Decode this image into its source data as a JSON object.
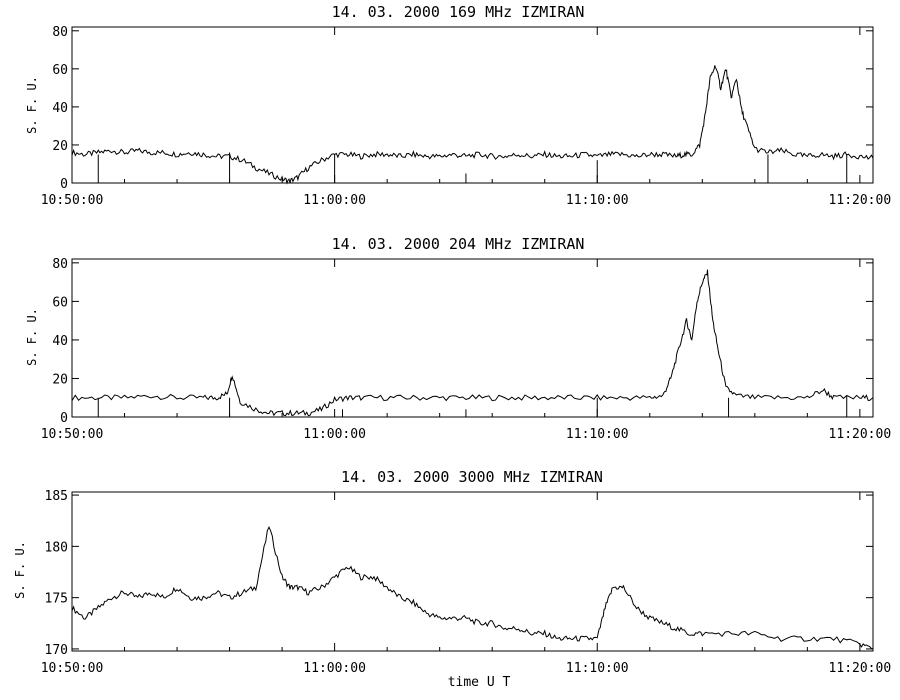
{
  "figure": {
    "footer_label": "time  U T",
    "colors": {
      "background": "#ffffff",
      "ink": "#000000"
    }
  },
  "chart_data": [
    {
      "type": "line",
      "title": "14.  03.  2000   169 MHz   IZMIRAN",
      "ylabel": "S. F. U.",
      "xlabel": "",
      "xlim": [
        0,
        30.5
      ],
      "ylim": [
        0,
        82
      ],
      "yticks": [
        0,
        20,
        40,
        60,
        80
      ],
      "xticks": [
        0,
        10,
        20,
        30
      ],
      "xtick_labels": [
        "10:50:00",
        "11:00:00",
        "11:10:00",
        "11:20:00"
      ],
      "x": [
        0,
        0.5,
        1,
        1.5,
        2,
        2.5,
        3,
        3.5,
        4,
        4.5,
        5,
        5.5,
        6,
        6.5,
        7,
        7.5,
        8,
        8.3,
        8.6,
        9,
        9.5,
        10,
        10.5,
        11,
        11.5,
        12,
        12.5,
        13,
        13.5,
        14,
        14.5,
        15,
        15.5,
        16,
        16.5,
        17,
        17.5,
        18,
        18.5,
        19,
        19.5,
        20,
        20.5,
        21,
        21.5,
        22,
        22.5,
        23,
        23.3,
        23.6,
        23.9,
        24.1,
        24.3,
        24.5,
        24.7,
        24.9,
        25.1,
        25.3,
        25.5,
        25.7,
        26,
        26.5,
        27,
        27.5,
        28,
        28.5,
        29,
        29.5,
        30,
        30.5
      ],
      "series": [
        {
          "values": [
            16,
            15,
            16,
            17,
            16,
            17,
            16,
            16,
            15,
            16,
            15,
            14,
            14,
            12,
            8,
            5,
            2,
            1,
            3,
            8,
            12,
            15,
            15,
            14,
            15,
            15,
            14,
            15,
            14,
            14,
            15,
            14,
            15,
            14,
            14,
            15,
            14,
            15,
            14,
            14,
            15,
            14,
            15,
            15,
            14,
            15,
            15,
            14,
            15,
            15,
            20,
            35,
            55,
            62,
            50,
            60,
            45,
            55,
            38,
            30,
            18,
            16,
            17,
            15,
            14,
            15,
            14,
            15,
            14,
            13
          ]
        }
      ],
      "dropouts_x": [
        1,
        6,
        10,
        15,
        20,
        26.5,
        29.5
      ]
    },
    {
      "type": "line",
      "title": "14.  03.  2000   204 MHz   IZMIRAN",
      "ylabel": "S. F. U.",
      "xlabel": "",
      "xlim": [
        0,
        30.5
      ],
      "ylim": [
        0,
        82
      ],
      "yticks": [
        0,
        20,
        40,
        60,
        80
      ],
      "xticks": [
        0,
        10,
        20,
        30
      ],
      "xtick_labels": [
        "10:50:00",
        "11:00:00",
        "11:10:00",
        "11:20:00"
      ],
      "x": [
        0,
        1,
        2,
        3,
        4,
        5,
        5.5,
        5.9,
        6.1,
        6.4,
        7,
        7.5,
        8,
        8.5,
        9,
        9.5,
        10,
        10.5,
        11,
        12,
        13,
        14,
        15,
        16,
        17,
        18,
        19,
        20,
        21,
        22,
        22.5,
        22.8,
        23.1,
        23.4,
        23.6,
        23.8,
        24,
        24.2,
        24.4,
        24.6,
        24.9,
        25.3,
        26,
        27,
        28,
        28.6,
        29,
        30,
        30.5
      ],
      "series": [
        {
          "values": [
            10,
            10,
            10,
            11,
            10,
            10,
            10,
            12,
            22,
            8,
            4,
            2,
            2,
            2,
            2,
            4,
            9,
            10,
            10,
            10,
            10,
            10,
            10,
            10,
            10,
            10,
            10,
            10,
            10,
            10,
            11,
            20,
            35,
            50,
            40,
            60,
            70,
            75,
            50,
            35,
            15,
            11,
            10,
            10,
            10,
            14,
            10,
            10,
            10
          ]
        }
      ],
      "dropouts_x": [
        1,
        6,
        10.3,
        15,
        20,
        25,
        29.5
      ]
    },
    {
      "type": "line",
      "title": "14.  03.  2000    3000 MHz   IZMIRAN",
      "ylabel": "S. F. U.",
      "xlabel": "",
      "xlim": [
        0,
        30.5
      ],
      "ylim": [
        169.8,
        185.3
      ],
      "yticks": [
        170,
        175,
        180,
        185
      ],
      "xticks": [
        0,
        10,
        20,
        30
      ],
      "xtick_labels": [
        "10:50:00",
        "11:00:00",
        "11:10:00",
        "11:20:00"
      ],
      "x": [
        0,
        0.5,
        1,
        1.5,
        2,
        2.5,
        3,
        3.5,
        4,
        4.5,
        5,
        5.5,
        6,
        6.5,
        7,
        7.5,
        8,
        8.3,
        8.6,
        9,
        9.5,
        10,
        10.5,
        11,
        11.5,
        12,
        12.5,
        13,
        13.5,
        14,
        14.5,
        15,
        15.5,
        16,
        16.5,
        17,
        17.5,
        18,
        18.5,
        19,
        19.5,
        20,
        20.3,
        20.6,
        21,
        21.5,
        22,
        22.5,
        23,
        23.5,
        24,
        25,
        26,
        27,
        28,
        29,
        30,
        30.5
      ],
      "series": [
        {
          "values": [
            174,
            173,
            174,
            175,
            175.5,
            175,
            175.5,
            175,
            176,
            175,
            175,
            175.5,
            175,
            175.5,
            176,
            182,
            177,
            176,
            176,
            175.5,
            176,
            177,
            178,
            177,
            177,
            176,
            175,
            174.5,
            173.5,
            173,
            173,
            173,
            172.5,
            172.5,
            172,
            172,
            171.5,
            171.5,
            171,
            171,
            171,
            171,
            174,
            176,
            176,
            174,
            173,
            172.5,
            172,
            171.5,
            171.5,
            171.5,
            171.5,
            171,
            171,
            171,
            170.5,
            170
          ]
        }
      ]
    }
  ]
}
